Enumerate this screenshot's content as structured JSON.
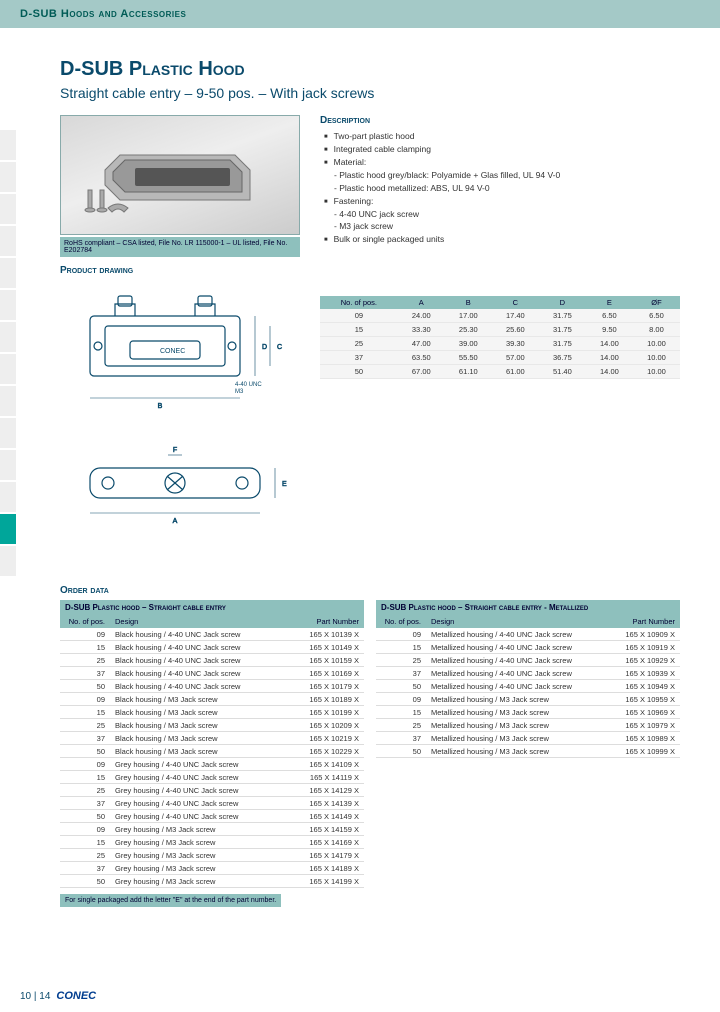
{
  "header": {
    "title": "D-SUB Hoods and Accessories"
  },
  "page_title": "D-SUB Plastic Hood",
  "subtitle": "Straight cable entry – 9-50 pos. – With jack screws",
  "rohs_line": "RoHS compliant – CSA listed, File No. LR 115000-1 – UL listed, File No. E202784",
  "section_labels": {
    "description": "Description",
    "drawing": "Product drawing",
    "order": "Order data"
  },
  "description": {
    "items": [
      "Two-part plastic hood",
      "Integrated cable clamping",
      "Material:",
      "Fastening:",
      "Bulk or single packaged units"
    ],
    "material_sub": [
      "- Plastic hood grey/black: Polyamide + Glas filled, UL 94 V-0",
      "- Plastic hood metallized: ABS, UL 94 V-0"
    ],
    "fastening_sub": [
      "- 4-40 UNC jack screw",
      "- M3 jack screw"
    ]
  },
  "dim_table": {
    "headers": [
      "No. of pos.",
      "A",
      "B",
      "C",
      "D",
      "E",
      "ØF"
    ],
    "rows": [
      [
        "09",
        "24.00",
        "17.00",
        "17.40",
        "31.75",
        "6.50",
        "6.50"
      ],
      [
        "15",
        "33.30",
        "25.30",
        "25.60",
        "31.75",
        "9.50",
        "8.00"
      ],
      [
        "25",
        "47.00",
        "39.00",
        "39.30",
        "31.75",
        "14.00",
        "10.00"
      ],
      [
        "37",
        "63.50",
        "55.50",
        "57.00",
        "36.75",
        "14.00",
        "10.00"
      ],
      [
        "50",
        "67.00",
        "61.10",
        "61.00",
        "51.40",
        "14.00",
        "10.00"
      ]
    ]
  },
  "drawing_labels": {
    "dims": [
      "A",
      "B",
      "C",
      "D",
      "E",
      "F"
    ],
    "thread": "4-40 UNC\nM3"
  },
  "order_left": {
    "title": "D-SUB Plastic hood – Straight cable entry",
    "headers": [
      "No. of pos.",
      "Design",
      "Part Number"
    ],
    "rows": [
      [
        "09",
        "Black housing / 4-40 UNC Jack screw",
        "165 X 10139 X"
      ],
      [
        "15",
        "Black housing / 4-40 UNC Jack screw",
        "165 X 10149 X"
      ],
      [
        "25",
        "Black housing / 4-40 UNC Jack screw",
        "165 X 10159 X"
      ],
      [
        "37",
        "Black housing / 4-40 UNC Jack screw",
        "165 X 10169 X"
      ],
      [
        "50",
        "Black housing / 4-40 UNC Jack screw",
        "165 X 10179 X"
      ],
      [
        "09",
        "Black housing / M3 Jack screw",
        "165 X 10189 X"
      ],
      [
        "15",
        "Black housing / M3 Jack screw",
        "165 X 10199 X"
      ],
      [
        "25",
        "Black housing / M3 Jack screw",
        "165 X 10209 X"
      ],
      [
        "37",
        "Black housing / M3 Jack screw",
        "165 X 10219 X"
      ],
      [
        "50",
        "Black housing / M3 Jack screw",
        "165 X 10229 X"
      ],
      [
        "09",
        "Grey housing / 4-40 UNC Jack screw",
        "165 X 14109 X"
      ],
      [
        "15",
        "Grey housing / 4-40 UNC Jack screw",
        "165 X 14119 X"
      ],
      [
        "25",
        "Grey housing / 4-40 UNC Jack screw",
        "165 X 14129 X"
      ],
      [
        "37",
        "Grey housing / 4-40 UNC Jack screw",
        "165 X 14139 X"
      ],
      [
        "50",
        "Grey housing / 4-40 UNC Jack screw",
        "165 X 14149 X"
      ],
      [
        "09",
        "Grey housing / M3 Jack screw",
        "165 X 14159 X"
      ],
      [
        "15",
        "Grey housing / M3 Jack screw",
        "165 X 14169 X"
      ],
      [
        "25",
        "Grey housing / M3 Jack screw",
        "165 X 14179 X"
      ],
      [
        "37",
        "Grey housing / M3 Jack screw",
        "165 X 14189 X"
      ],
      [
        "50",
        "Grey housing / M3 Jack screw",
        "165 X 14199 X"
      ]
    ]
  },
  "order_right": {
    "title": "D-SUB Plastic hood – Straight cable entry - Metallized",
    "headers": [
      "No. of pos.",
      "Design",
      "Part Number"
    ],
    "rows": [
      [
        "09",
        "Metallized housing / 4-40 UNC Jack screw",
        "165 X 10909 X"
      ],
      [
        "15",
        "Metallized housing / 4-40 UNC Jack screw",
        "165 X 10919 X"
      ],
      [
        "25",
        "Metallized housing / 4-40 UNC Jack screw",
        "165 X 10929 X"
      ],
      [
        "37",
        "Metallized housing / 4-40 UNC Jack screw",
        "165 X 10939 X"
      ],
      [
        "50",
        "Metallized housing / 4-40 UNC Jack screw",
        "165 X 10949 X"
      ],
      [
        "09",
        "Metallized housing / M3 Jack screw",
        "165 X 10959 X"
      ],
      [
        "15",
        "Metallized housing / M3 Jack screw",
        "165 X 10969 X"
      ],
      [
        "25",
        "Metallized housing / M3 Jack screw",
        "165 X 10979 X"
      ],
      [
        "37",
        "Metallized housing / M3 Jack screw",
        "165 X 10989 X"
      ],
      [
        "50",
        "Metallized housing / M3 Jack screw",
        "165 X 10999 X"
      ]
    ]
  },
  "footnote": "For single packaged add the letter \"E\" at the end of the part number.",
  "footer": {
    "page": "10 | 14",
    "brand": "CONEC"
  },
  "colors": {
    "teal_bg": "#a4c9c7",
    "teal_dark": "#005b56",
    "accent": "#00a69a",
    "heading": "#0a4a6b",
    "cell_bg": "#8ec0bd"
  }
}
